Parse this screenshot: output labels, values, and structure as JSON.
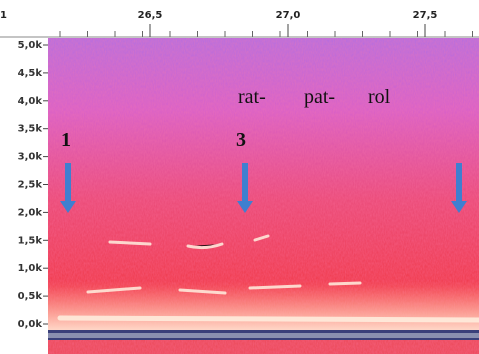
{
  "time_ruler": {
    "ticks": [
      "1",
      "26,5",
      "27,0",
      "27,5"
    ]
  },
  "frequency_axis": {
    "ticks": [
      "5,0k",
      "4,5k",
      "4,0k",
      "3,5k",
      "3,0k",
      "2,5k",
      "2,0k",
      "1,5k",
      "1,0k",
      "0,5k",
      "0,0k"
    ]
  },
  "annotations": {
    "syllables": [
      "rat-",
      "pat-",
      "rol"
    ],
    "markers": [
      "1",
      "3"
    ]
  }
}
